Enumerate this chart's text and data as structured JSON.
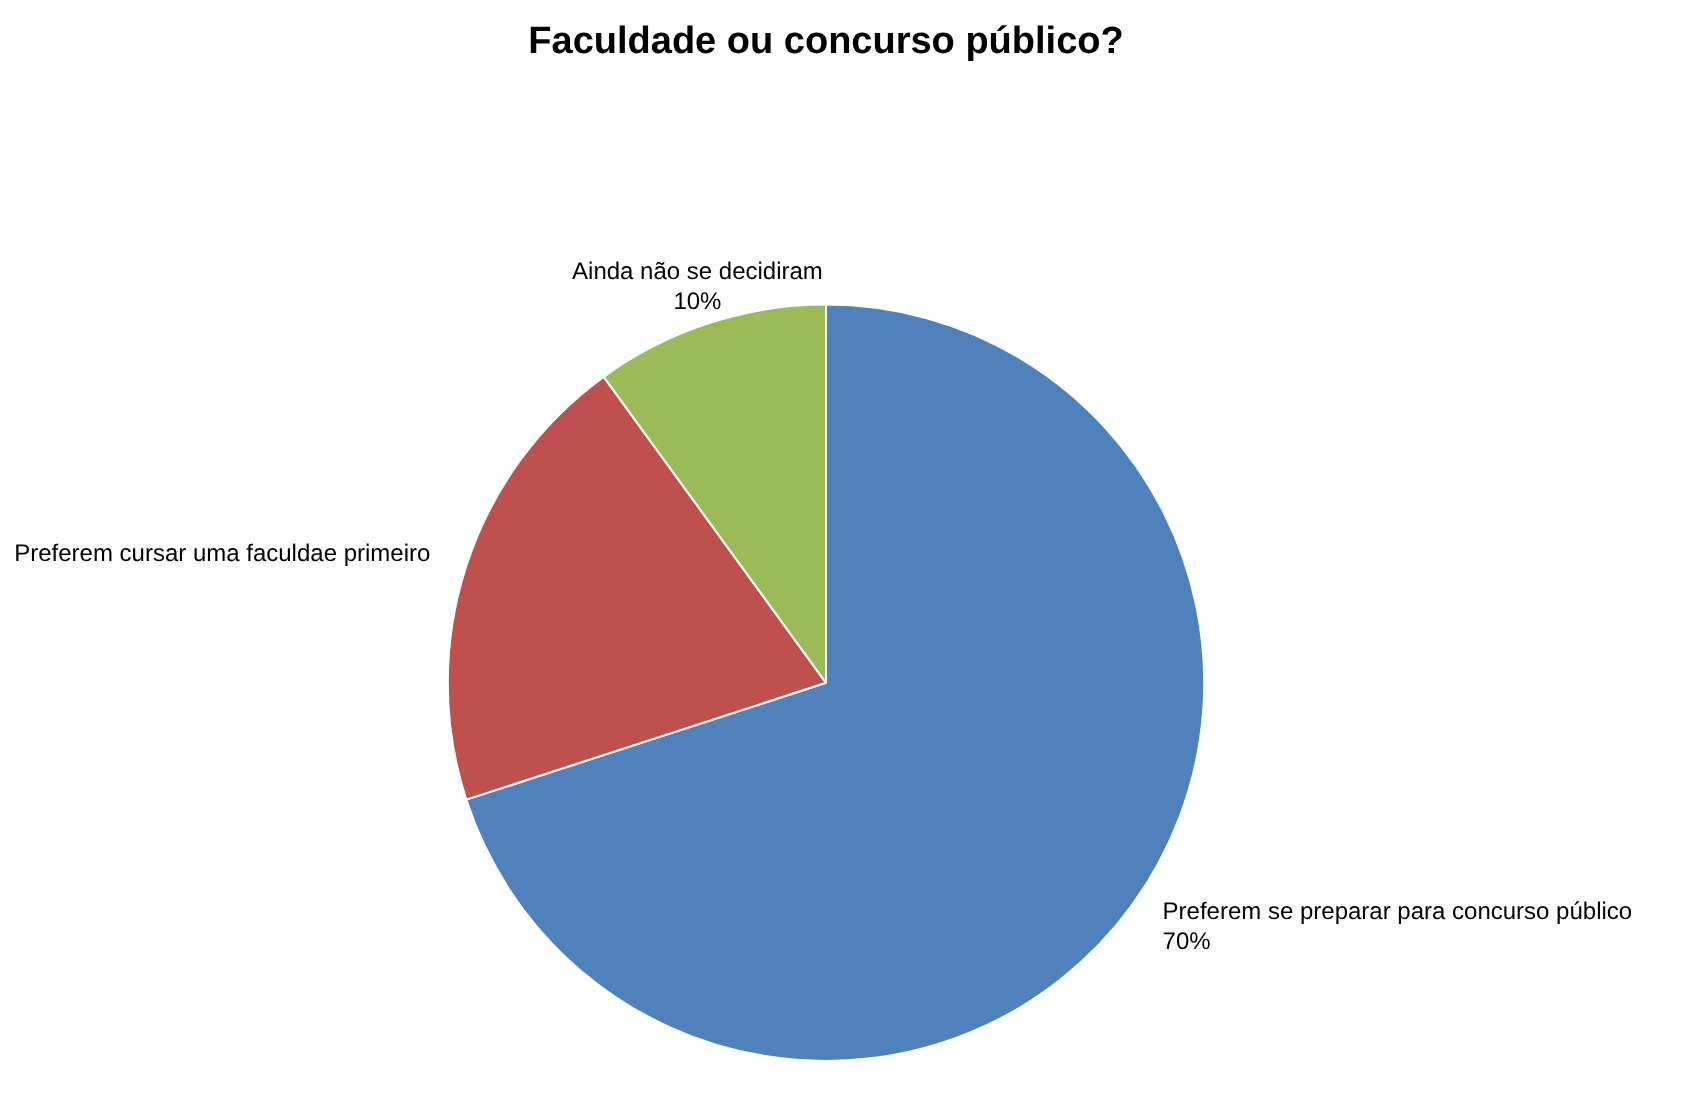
{
  "chart_data": {
    "type": "pie",
    "title": "Faculdade ou concurso público?",
    "categories": [
      "Preferem se preparar para concurso público",
      "Preferem cursar uma faculdae primeiro",
      "Ainda não se decidiram"
    ],
    "values": [
      70,
      20,
      10
    ],
    "colors": [
      "#4f81bd",
      "#c0504d",
      "#9bbb59"
    ],
    "value_labels": [
      "70%",
      null,
      "10%"
    ],
    "legend": false
  }
}
